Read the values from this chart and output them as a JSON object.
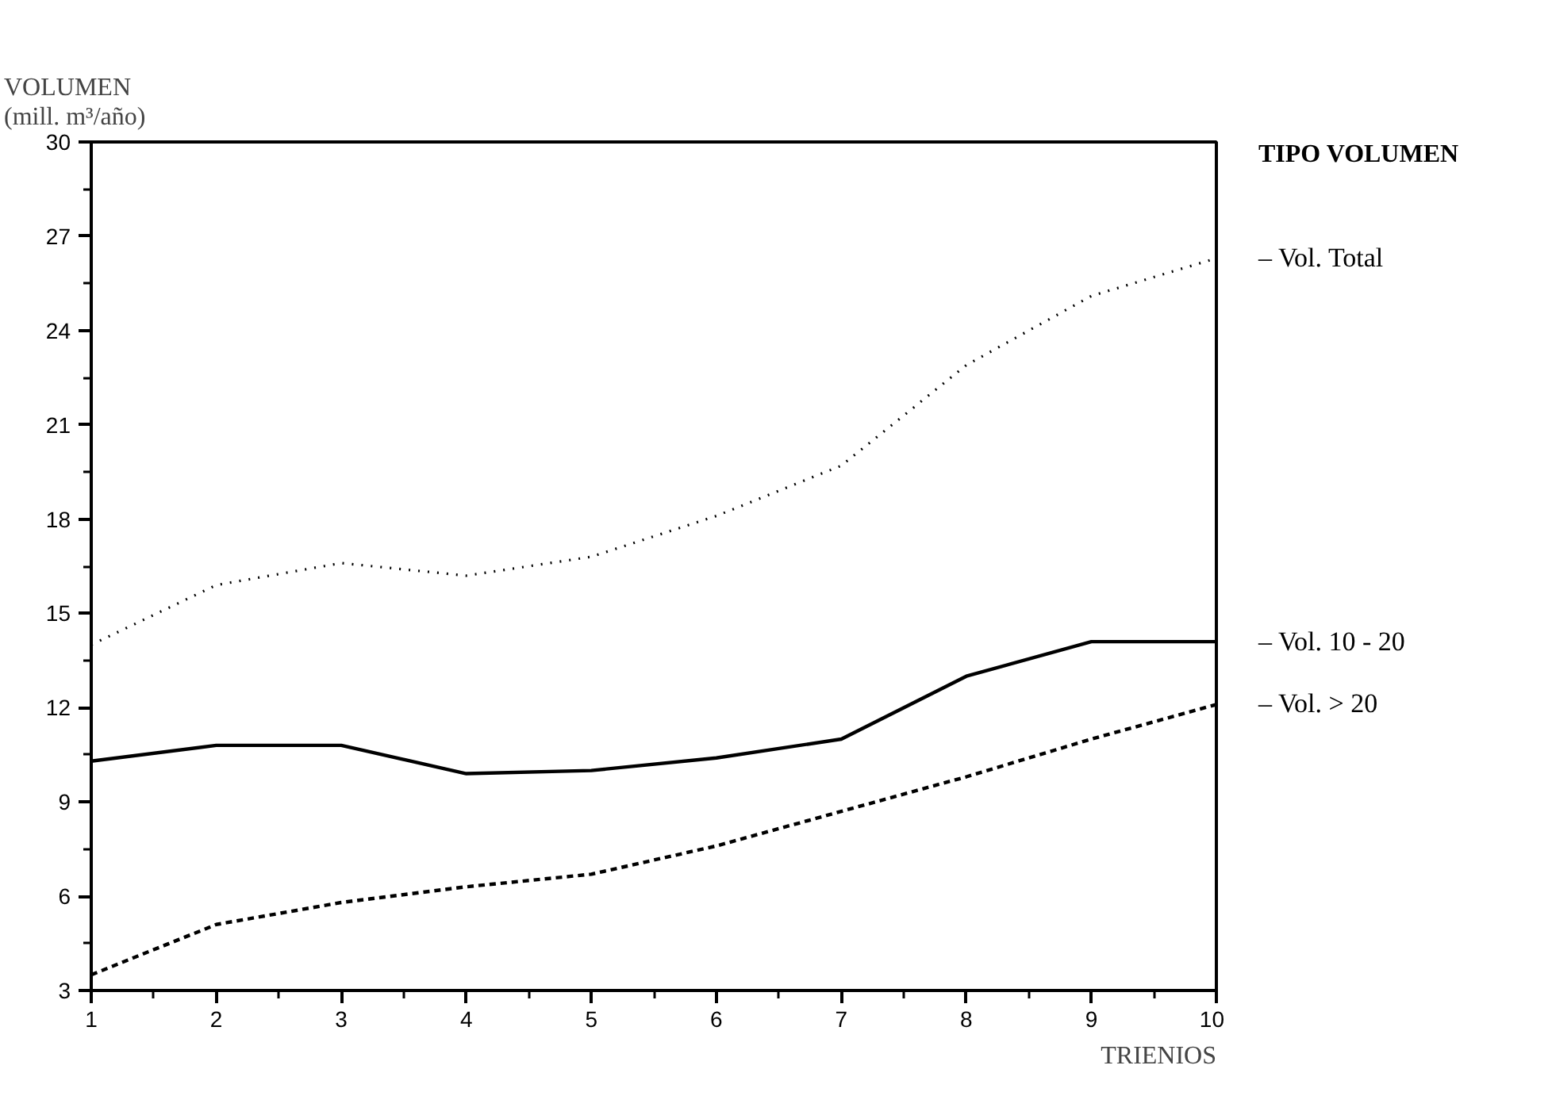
{
  "chart_data": {
    "type": "line",
    "xlabel": "TRIENIOS",
    "ylabel": "VOLUMEN\n(mill. m³/año)",
    "legend_title": "TIPO VOLUMEN",
    "grid": false,
    "marker": "none",
    "x": [
      1,
      2,
      3,
      4,
      5,
      6,
      7,
      8,
      9,
      10
    ],
    "xlim": [
      1,
      10
    ],
    "xticks": [
      1,
      2,
      3,
      4,
      5,
      6,
      7,
      8,
      9,
      10
    ],
    "ylim": [
      3,
      30
    ],
    "yticks": [
      3,
      6,
      9,
      12,
      15,
      18,
      21,
      24,
      27,
      30
    ],
    "series": [
      {
        "name": "– Vol. Total",
        "color": "#000000",
        "line_style": "dotted",
        "values": [
          14.0,
          15.9,
          16.6,
          16.2,
          16.8,
          18.1,
          19.7,
          22.9,
          25.1,
          26.3
        ]
      },
      {
        "name": "– Vol. 10 - 20",
        "color": "#000000",
        "line_style": "solid",
        "values": [
          10.3,
          10.8,
          10.8,
          9.9,
          10.0,
          10.4,
          11.0,
          13.0,
          14.1,
          14.1
        ]
      },
      {
        "name": "– Vol. > 20",
        "color": "#000000",
        "line_style": "dashed",
        "values": [
          3.5,
          5.1,
          5.8,
          6.3,
          6.7,
          7.6,
          8.7,
          9.8,
          11.0,
          12.1
        ]
      }
    ]
  }
}
